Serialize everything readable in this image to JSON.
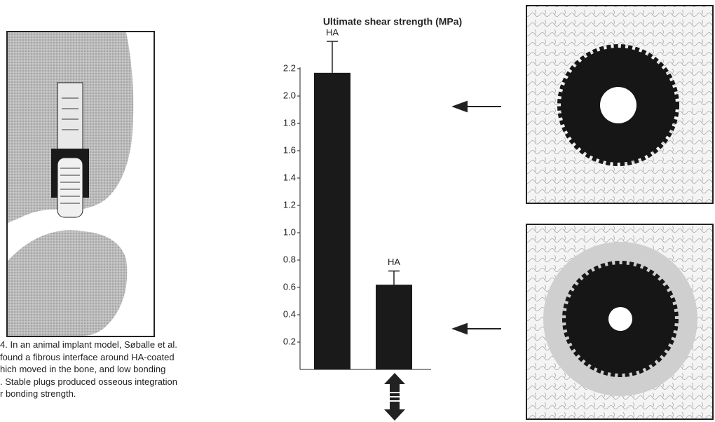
{
  "chart_data": {
    "type": "bar",
    "title": "Ultimate shear strength (MPa)",
    "categories": [
      "HA",
      "HA"
    ],
    "values": [
      2.17,
      0.62
    ],
    "errors": [
      0.23,
      0.1
    ],
    "color": "#1a1a1a",
    "ylim": [
      0,
      2.2
    ],
    "yticks": [
      0.2,
      0.4,
      0.6,
      0.8,
      {
        "value": 1,
        "label": "1.0"
      },
      1.2,
      1.4,
      1.6,
      1.8,
      {
        "value": 2,
        "label": "2.0"
      },
      2.2
    ]
  },
  "caption": {
    "lines": [
      "4. In an animal implant model, Søballe et al.",
      "found a fibrous interface around HA-coated",
      "hich moved in the bone, and low bonding",
      ". Stable plugs produced osseous integration",
      "r bonding strength."
    ]
  }
}
